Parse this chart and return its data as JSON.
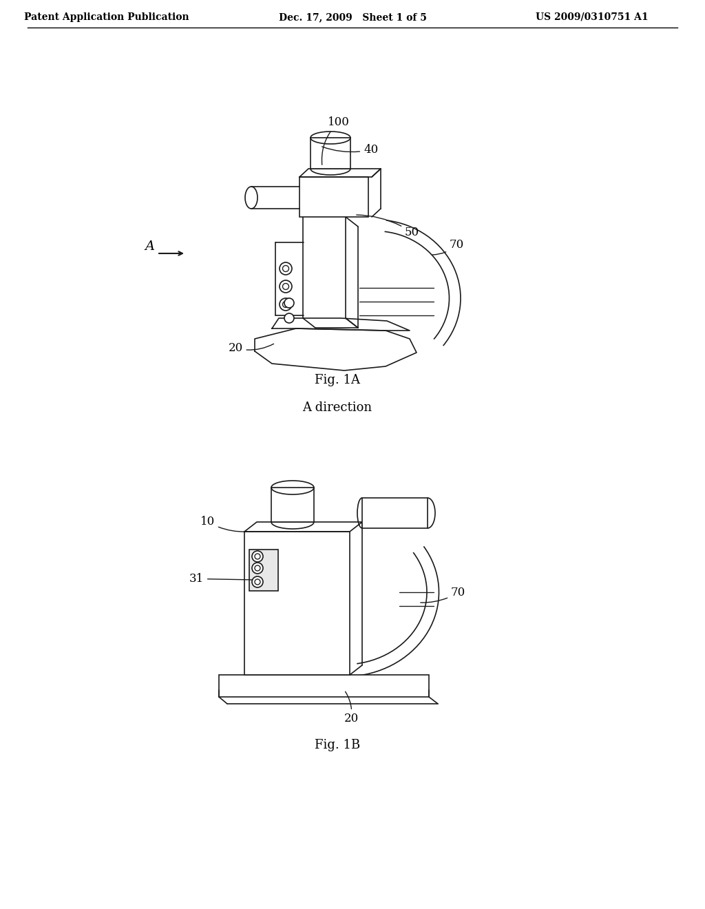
{
  "background_color": "#ffffff",
  "header_left": "Patent Application Publication",
  "header_center": "Dec. 17, 2009   Sheet 1 of 5",
  "header_right": "US 2009/0310751 A1",
  "fig1a_caption": "Fig. 1A",
  "fig1b_caption": "Fig. 1B",
  "fig1b_title": "A direction",
  "header_fontsize": 11,
  "caption_fontsize": 13,
  "label_fontsize": 12
}
